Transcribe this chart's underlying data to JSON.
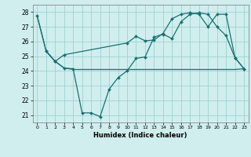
{
  "xlabel": "Humidex (Indice chaleur)",
  "xlim": [
    -0.5,
    23.5
  ],
  "ylim": [
    20.5,
    28.5
  ],
  "yticks": [
    21,
    22,
    23,
    24,
    25,
    26,
    27,
    28
  ],
  "xticks": [
    0,
    1,
    2,
    3,
    4,
    5,
    6,
    7,
    8,
    9,
    10,
    11,
    12,
    13,
    14,
    15,
    16,
    17,
    18,
    19,
    20,
    21,
    22,
    23
  ],
  "line_color": "#1a7070",
  "bg_color": "#d0eeee",
  "grid_color": "#95cccc",
  "line1_x": [
    0,
    1,
    2,
    3,
    4,
    5,
    6,
    7,
    8,
    9,
    10,
    11,
    12,
    13,
    14,
    15,
    16,
    17,
    18,
    19,
    20,
    21,
    22,
    23
  ],
  "line1_y": [
    27.75,
    25.35,
    24.65,
    24.2,
    24.15,
    21.15,
    21.15,
    20.9,
    22.75,
    23.55,
    24.0,
    24.85,
    24.95,
    26.3,
    26.5,
    26.2,
    27.35,
    27.85,
    27.95,
    27.85,
    27.0,
    26.4,
    24.9,
    24.15
  ],
  "line2_x": [
    0,
    1,
    2,
    3,
    4,
    5,
    6,
    7,
    8,
    9,
    10,
    11,
    12,
    13,
    14,
    15,
    16,
    17,
    18,
    19,
    20,
    21,
    22,
    23
  ],
  "line2_y": [
    27.75,
    25.35,
    24.65,
    24.2,
    24.1,
    24.1,
    24.1,
    24.1,
    24.1,
    24.1,
    24.1,
    24.1,
    24.1,
    24.1,
    24.1,
    24.1,
    24.1,
    24.1,
    24.1,
    24.1,
    24.1,
    24.1,
    24.1,
    24.15
  ],
  "line3_x": [
    1,
    2,
    3,
    10,
    11,
    12,
    13,
    14,
    15,
    16,
    17,
    18,
    19,
    20,
    21,
    22,
    23
  ],
  "line3_y": [
    25.35,
    24.65,
    25.1,
    25.9,
    26.35,
    26.05,
    26.1,
    26.55,
    27.55,
    27.85,
    27.95,
    27.85,
    27.0,
    27.85,
    27.85,
    24.9,
    24.15
  ]
}
